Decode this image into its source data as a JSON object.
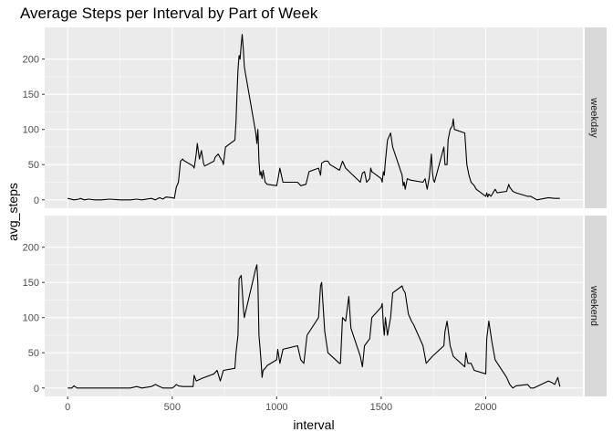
{
  "chart_data": {
    "type": "line",
    "title": "Average Steps per Interval by Part of Week",
    "xlabel": "interval",
    "ylabel": "avg_steps",
    "xlim": [
      -110,
      2465
    ],
    "ylim": [
      -12,
      245
    ],
    "x_ticks": [
      0,
      500,
      1000,
      1500,
      2000
    ],
    "y_ticks": [
      0,
      50,
      100,
      150,
      200
    ],
    "grid": true,
    "legend": "none",
    "facets": [
      {
        "strip_label": "weekday",
        "x": [
          0,
          30,
          55,
          60,
          80,
          100,
          130,
          160,
          200,
          250,
          300,
          330,
          355,
          400,
          420,
          440,
          455,
          470,
          500,
          510,
          520,
          530,
          540,
          550,
          555,
          600,
          605,
          610,
          615,
          620,
          630,
          640,
          650,
          655,
          700,
          705,
          710,
          720,
          735,
          740,
          745,
          755,
          800,
          805,
          810,
          815,
          820,
          825,
          830,
          835,
          840,
          845,
          850,
          855,
          900,
          905,
          910,
          915,
          920,
          925,
          930,
          935,
          945,
          955,
          1000,
          1005,
          1015,
          1030,
          1100,
          1115,
          1140,
          1155,
          1200,
          1210,
          1215,
          1230,
          1245,
          1255,
          1300,
          1315,
          1330,
          1400,
          1410,
          1420,
          1430,
          1445,
          1450,
          1455,
          1500,
          1505,
          1510,
          1515,
          1520,
          1530,
          1545,
          1555,
          1600,
          1605,
          1610,
          1615,
          1625,
          1640,
          1700,
          1710,
          1720,
          1730,
          1740,
          1745,
          1750,
          1755,
          1800,
          1805,
          1815,
          1820,
          1830,
          1840,
          1845,
          1850,
          1900,
          1910,
          1920,
          1930,
          1945,
          1955,
          2000,
          2005,
          2010,
          2015,
          2025,
          2045,
          2055,
          2100,
          2110,
          2115,
          2130,
          2145,
          2200,
          2215,
          2245,
          2300,
          2330,
          2355
        ],
        "y": [
          2,
          0,
          1,
          2,
          0,
          1,
          0,
          0,
          1,
          0,
          0,
          1,
          0,
          2,
          0,
          3,
          1,
          4,
          3,
          2,
          18,
          25,
          55,
          58,
          56,
          48,
          45,
          55,
          65,
          80,
          58,
          70,
          52,
          48,
          55,
          60,
          62,
          65,
          57,
          55,
          50,
          75,
          85,
          110,
          150,
          185,
          205,
          200,
          220,
          235,
          215,
          190,
          180,
          172,
          95,
          80,
          100,
          55,
          35,
          40,
          30,
          42,
          25,
          22,
          20,
          28,
          45,
          25,
          25,
          20,
          22,
          40,
          45,
          35,
          52,
          55,
          55,
          50,
          42,
          55,
          45,
          25,
          38,
          40,
          25,
          30,
          45,
          40,
          30,
          25,
          40,
          35,
          55,
          85,
          95,
          75,
          35,
          20,
          25,
          15,
          30,
          28,
          25,
          30,
          15,
          32,
          65,
          40,
          28,
          25,
          75,
          50,
          50,
          85,
          100,
          105,
          115,
          100,
          95,
          50,
          35,
          25,
          20,
          15,
          5,
          10,
          4,
          8,
          5,
          15,
          10,
          12,
          22,
          18,
          12,
          10,
          5,
          5,
          0,
          3,
          2,
          2
        ]
      },
      {
        "strip_label": "weekend",
        "x": [
          0,
          20,
          30,
          45,
          100,
          150,
          200,
          250,
          300,
          330,
          355,
          400,
          420,
          440,
          455,
          500,
          510,
          520,
          530,
          550,
          600,
          605,
          615,
          630,
          645,
          700,
          715,
          730,
          745,
          800,
          805,
          815,
          820,
          830,
          835,
          840,
          845,
          900,
          905,
          910,
          915,
          925,
          930,
          935,
          945,
          955,
          1000,
          1005,
          1015,
          1030,
          1100,
          1115,
          1130,
          1145,
          1200,
          1210,
          1215,
          1230,
          1245,
          1300,
          1305,
          1315,
          1330,
          1345,
          1355,
          1400,
          1410,
          1420,
          1445,
          1455,
          1500,
          1505,
          1510,
          1515,
          1520,
          1530,
          1545,
          1555,
          1600,
          1605,
          1615,
          1630,
          1645,
          1655,
          1700,
          1715,
          1730,
          1745,
          1800,
          1805,
          1815,
          1830,
          1845,
          1900,
          1905,
          1915,
          1930,
          1945,
          2000,
          2005,
          2015,
          2030,
          2045,
          2100,
          2115,
          2130,
          2145,
          2200,
          2215,
          2230,
          2300,
          2315,
          2330,
          2345,
          2355
        ],
        "y": [
          0,
          0,
          3,
          0,
          0,
          0,
          0,
          0,
          0,
          2,
          0,
          2,
          5,
          2,
          0,
          0,
          2,
          5,
          3,
          2,
          2,
          18,
          10,
          12,
          14,
          20,
          25,
          10,
          25,
          28,
          50,
          75,
          155,
          160,
          140,
          115,
          100,
          170,
          175,
          150,
          75,
          40,
          15,
          25,
          28,
          32,
          40,
          55,
          35,
          55,
          60,
          40,
          35,
          75,
          100,
          145,
          150,
          80,
          50,
          35,
          35,
          100,
          95,
          130,
          85,
          45,
          30,
          60,
          70,
          100,
          115,
          120,
          90,
          75,
          100,
          75,
          100,
          135,
          145,
          140,
          135,
          105,
          95,
          90,
          60,
          35,
          40,
          45,
          60,
          80,
          95,
          60,
          45,
          30,
          50,
          35,
          35,
          25,
          20,
          70,
          95,
          65,
          40,
          15,
          5,
          0,
          3,
          5,
          0,
          0,
          10,
          8,
          5,
          15,
          2
        ]
      }
    ]
  }
}
